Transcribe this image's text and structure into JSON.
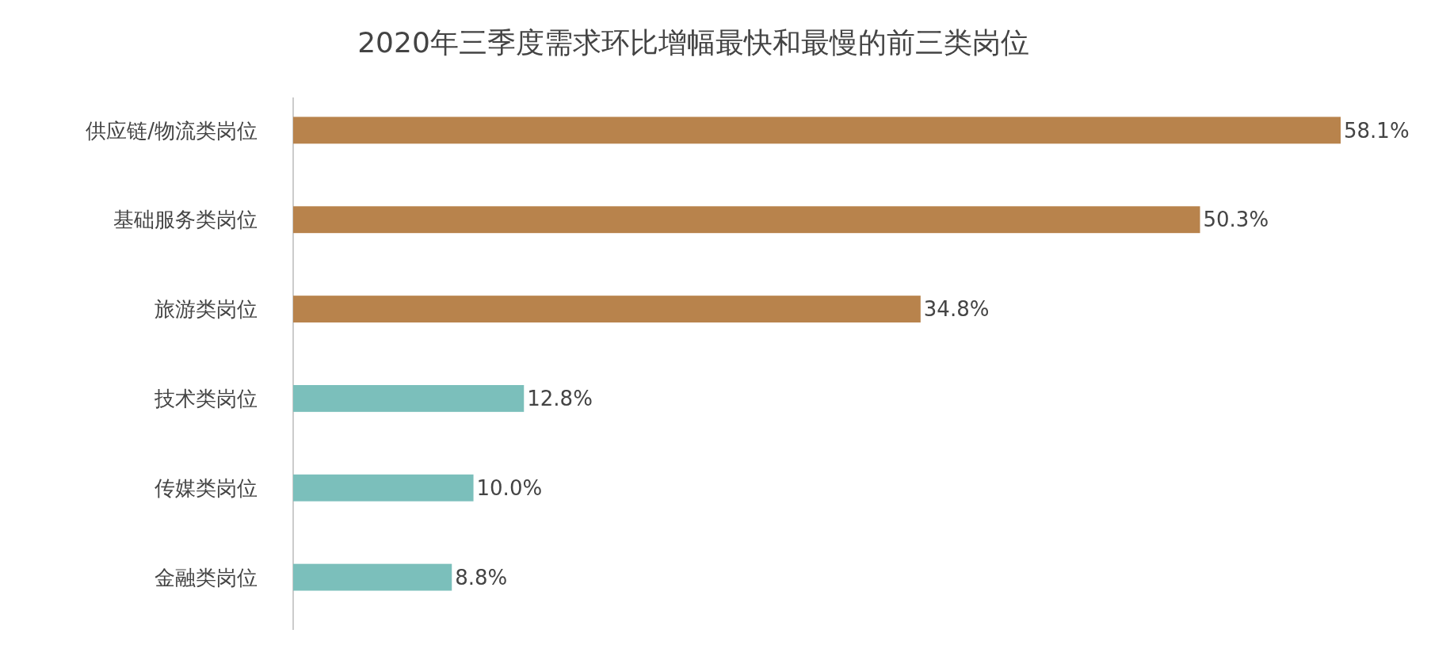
{
  "chart_data": {
    "type": "bar",
    "orientation": "horizontal",
    "title": "2020年三季度需求环比增幅最快和最慢的前三类岗位",
    "categories": [
      "供应链/物流类岗位",
      "基础服务类岗位",
      "旅游类岗位",
      "技术类岗位",
      "传媒类岗位",
      "金融类岗位"
    ],
    "values": [
      58.1,
      50.3,
      34.8,
      12.8,
      10.0,
      8.8
    ],
    "colors": [
      "#b8834c",
      "#b8834c",
      "#b8834c",
      "#7bbfbb",
      "#7bbfbb",
      "#7bbfbb"
    ],
    "value_labels": [
      "58.1%",
      "50.3%",
      "34.8%",
      "12.8%",
      "10.0%",
      "8.8%"
    ],
    "tick_labels": "y"
  }
}
